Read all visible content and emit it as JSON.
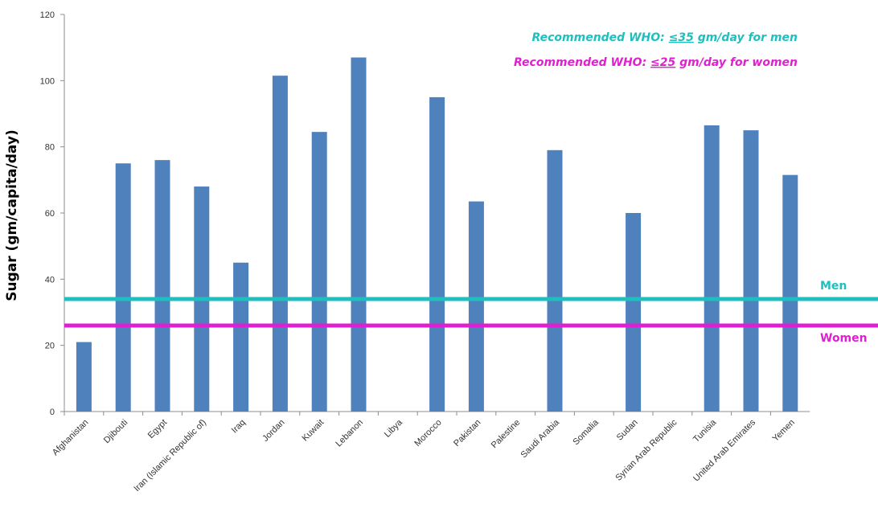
{
  "chart_data": {
    "type": "bar",
    "ylabel": "Sugar (gm/capita/day)",
    "ylim": [
      0,
      120
    ],
    "yticks": [
      0,
      20,
      40,
      60,
      80,
      100,
      120
    ],
    "grid": false,
    "categories": [
      "Afghanistan",
      "Djibouti",
      "Egypt",
      "Iran (Islamic Republic of)",
      "Iraq",
      "Jordan",
      "Kuwait",
      "Lebanon",
      "Libya",
      "Morocco",
      "Pakistan",
      "Palestine",
      "Saudi Arabia",
      "Somalia",
      "Sudan",
      "Syrian Arab Republic",
      "Tunisia",
      "United Arab Emirates",
      "Yemen"
    ],
    "values": [
      21,
      75,
      76,
      68,
      45,
      101.5,
      84.5,
      107,
      null,
      95,
      63.5,
      null,
      79,
      null,
      60,
      null,
      86.5,
      85,
      71.5
    ],
    "bar_color": "#4f81bd",
    "reference_lines": [
      {
        "label": "Men",
        "value": 34,
        "color": "#1fbfbf"
      },
      {
        "label": "Women",
        "value": 26,
        "color": "#e020d0"
      }
    ],
    "annotations": [
      {
        "prefix": "Recommended WHO: ",
        "emph": "≤35",
        "suffix": " gm/day for men",
        "color": "#1fbfbf"
      },
      {
        "prefix": "Recommended WHO: ",
        "emph": "≤25",
        "suffix": " gm/day for women",
        "color": "#e020d0"
      }
    ]
  }
}
